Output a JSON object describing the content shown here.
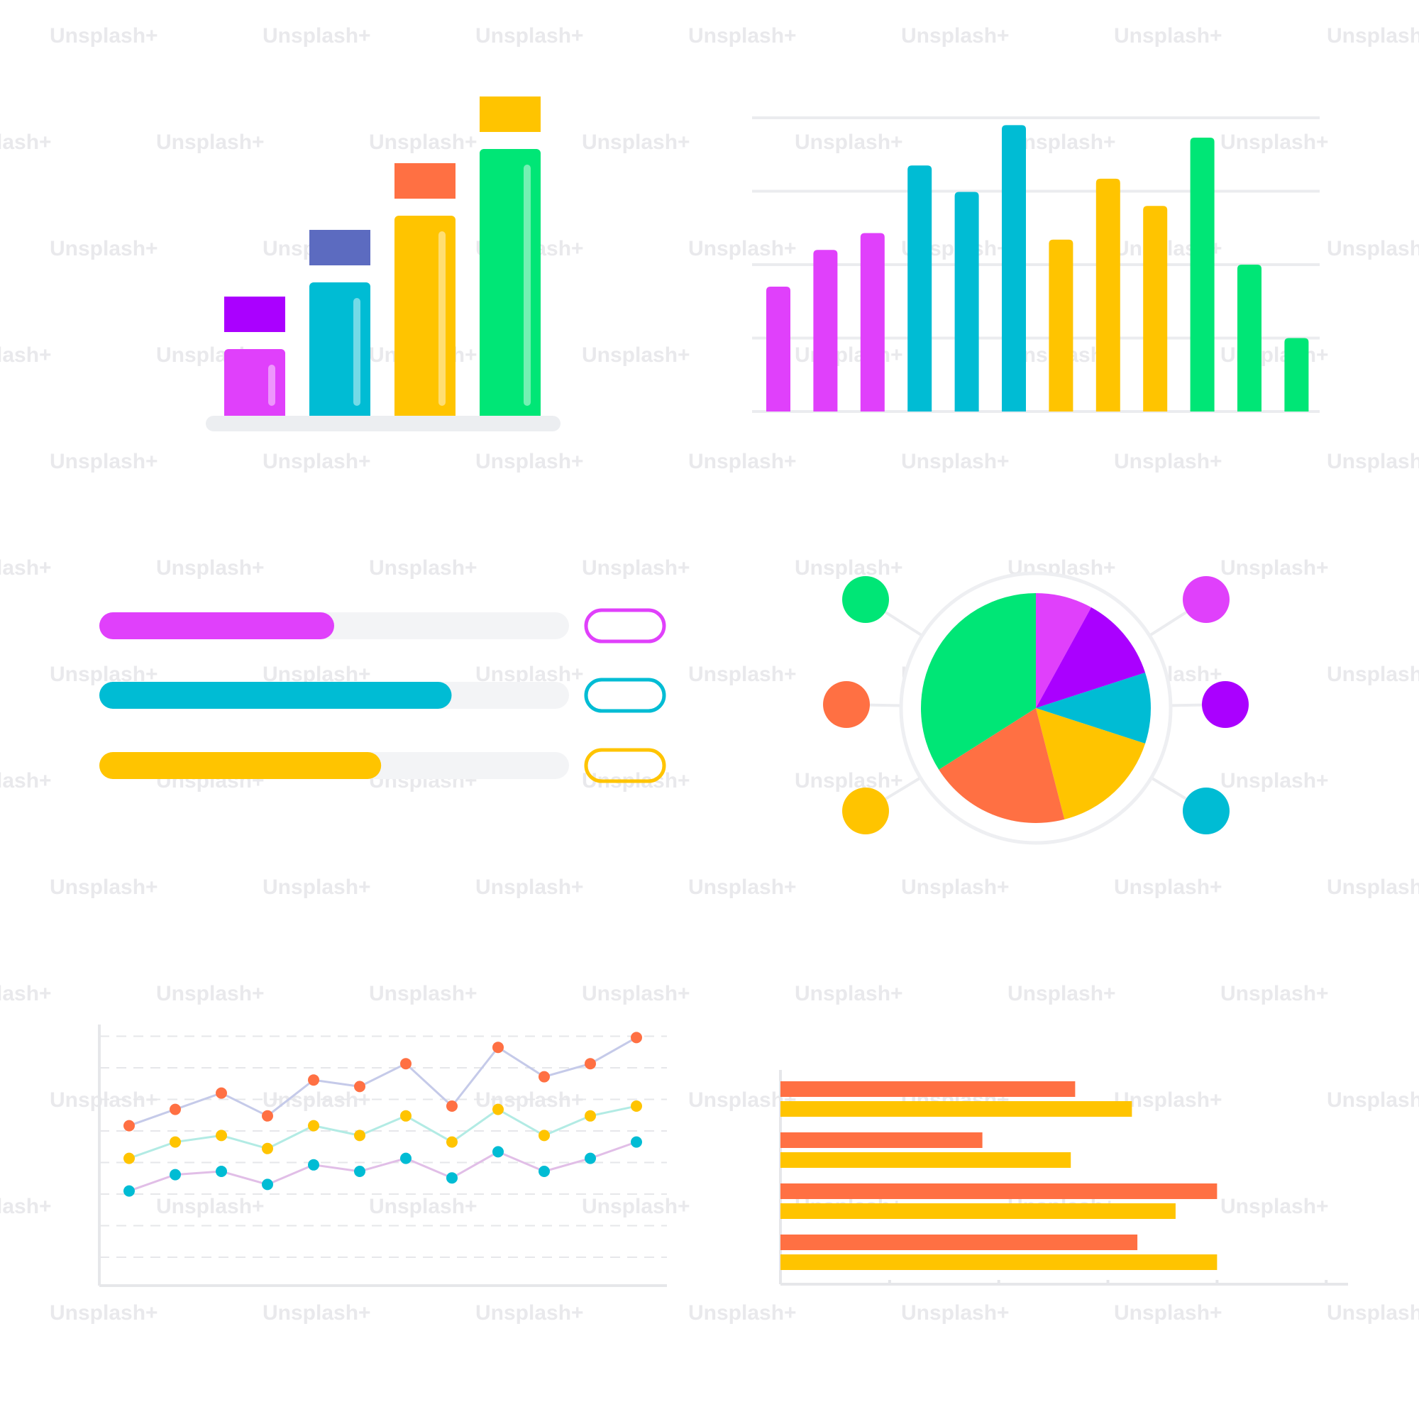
{
  "watermark": {
    "text": "Unsplash+"
  },
  "colors": {
    "magenta": "#e040fb",
    "violet": "#aa00ff",
    "cyan": "#00bcd4",
    "yellow": "#ffc400",
    "orange": "#ff7043",
    "green": "#00e676",
    "indigo": "#5c6bc0",
    "track": "#f3f4f6",
    "grid": "#ebecef"
  },
  "chart_data": [
    {
      "type": "bar",
      "id": "stepped-bars",
      "values": [
        1,
        2,
        3,
        4
      ],
      "colors": [
        "#e040fb",
        "#00bcd4",
        "#ffc400",
        "#00e676"
      ],
      "cap_colors": [
        "#aa00ff",
        "#5c6bc0",
        "#ff7043",
        "#ffc400"
      ]
    },
    {
      "type": "bar",
      "id": "column-bars",
      "ylim": [
        0,
        4
      ],
      "grid": true,
      "values": [
        1.7,
        2.2,
        2.43,
        3.35,
        2.99,
        3.9,
        2.34,
        3.17,
        2.8,
        3.73,
        2.0,
        1.0
      ],
      "colors": [
        "#e040fb",
        "#e040fb",
        "#e040fb",
        "#00bcd4",
        "#00bcd4",
        "#00bcd4",
        "#ffc400",
        "#ffc400",
        "#ffc400",
        "#00e676",
        "#00e676",
        "#00e676"
      ]
    },
    {
      "type": "bar",
      "id": "progress-bars",
      "orientation": "horizontal",
      "values": [
        0.5,
        0.75,
        0.6
      ],
      "colors": [
        "#e040fb",
        "#00bcd4",
        "#ffc400"
      ]
    },
    {
      "type": "pie",
      "id": "pie",
      "slices": [
        {
          "value": 8,
          "color": "#e040fb"
        },
        {
          "value": 12,
          "color": "#aa00ff"
        },
        {
          "value": 10,
          "color": "#00bcd4"
        },
        {
          "value": 16,
          "color": "#ffc400"
        },
        {
          "value": 20,
          "color": "#ff7043"
        },
        {
          "value": 34,
          "color": "#00e676"
        }
      ],
      "nodes_left": [
        "#00e676",
        "#ff7043",
        "#ffc400"
      ],
      "nodes_right": [
        "#e040fb",
        "#aa00ff",
        "#00bcd4"
      ]
    },
    {
      "type": "line",
      "id": "lines",
      "x": [
        1,
        2,
        3,
        4,
        5,
        6,
        7,
        8,
        9,
        10,
        11,
        12
      ],
      "ylim": [
        0,
        8
      ],
      "grid": true,
      "series": [
        {
          "values": [
            4.9,
            5.4,
            5.9,
            5.2,
            6.3,
            6.1,
            6.8,
            5.5,
            7.3,
            6.4,
            6.8,
            7.6
          ],
          "color": "#ff7043",
          "line_color": "#c5cae9"
        },
        {
          "values": [
            3.9,
            4.4,
            4.6,
            4.2,
            4.9,
            4.6,
            5.2,
            4.4,
            5.4,
            4.6,
            5.2,
            5.5
          ],
          "color": "#ffc400",
          "line_color": "#b2ebe4"
        },
        {
          "values": [
            2.9,
            3.4,
            3.5,
            3.1,
            3.7,
            3.5,
            3.9,
            3.3,
            4.1,
            3.5,
            3.9,
            4.4
          ],
          "color": "#00bcd4",
          "line_color": "#e1bee7"
        }
      ]
    },
    {
      "type": "bar",
      "id": "grouped-hbars",
      "orientation": "horizontal",
      "xlim": [
        0,
        5.2
      ],
      "categories_count": 4,
      "series": [
        {
          "values": [
            2.7,
            1.85,
            4.0,
            3.27
          ],
          "color": "#ff7043"
        },
        {
          "values": [
            3.22,
            2.66,
            3.62,
            4.0
          ],
          "color": "#ffc400"
        }
      ]
    }
  ]
}
